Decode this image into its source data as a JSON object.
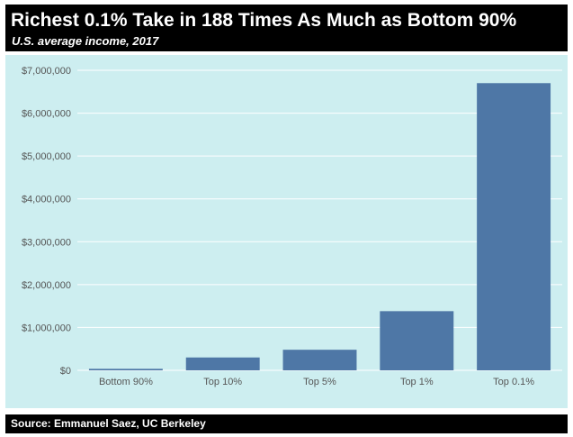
{
  "header": {
    "title": "Richest 0.1% Take in 188 Times As Much as Bottom 90%",
    "subtitle": "U.S. average income, 2017"
  },
  "footer": {
    "source": "Source: Emmanuel Saez, UC Berkeley"
  },
  "colors": {
    "background": "#cdeef0",
    "bar": "#4e77a6",
    "header_bg": "#000000",
    "header_text": "#ffffff",
    "gridline": "#ffffff",
    "tick_text": "#555555"
  },
  "chart_data": {
    "type": "bar",
    "title": "Richest 0.1% Take in 188 Times As Much as Bottom 90%",
    "subtitle": "U.S. average income, 2017",
    "categories": [
      "Bottom 90%",
      "Top 10%",
      "Top 5%",
      "Top 1%",
      "Top 0.1%"
    ],
    "values": [
      35000,
      300000,
      480000,
      1380000,
      6700000
    ],
    "xlabel": "",
    "ylabel": "",
    "ylim": [
      0,
      7000000
    ],
    "yticks": [
      0,
      1000000,
      2000000,
      3000000,
      4000000,
      5000000,
      6000000,
      7000000
    ],
    "ytick_labels": [
      "$0",
      "$1,000,000",
      "$2,000,000",
      "$3,000,000",
      "$4,000,000",
      "$5,000,000",
      "$6,000,000",
      "$7,000,000"
    ],
    "grid": true,
    "legend": "none"
  }
}
